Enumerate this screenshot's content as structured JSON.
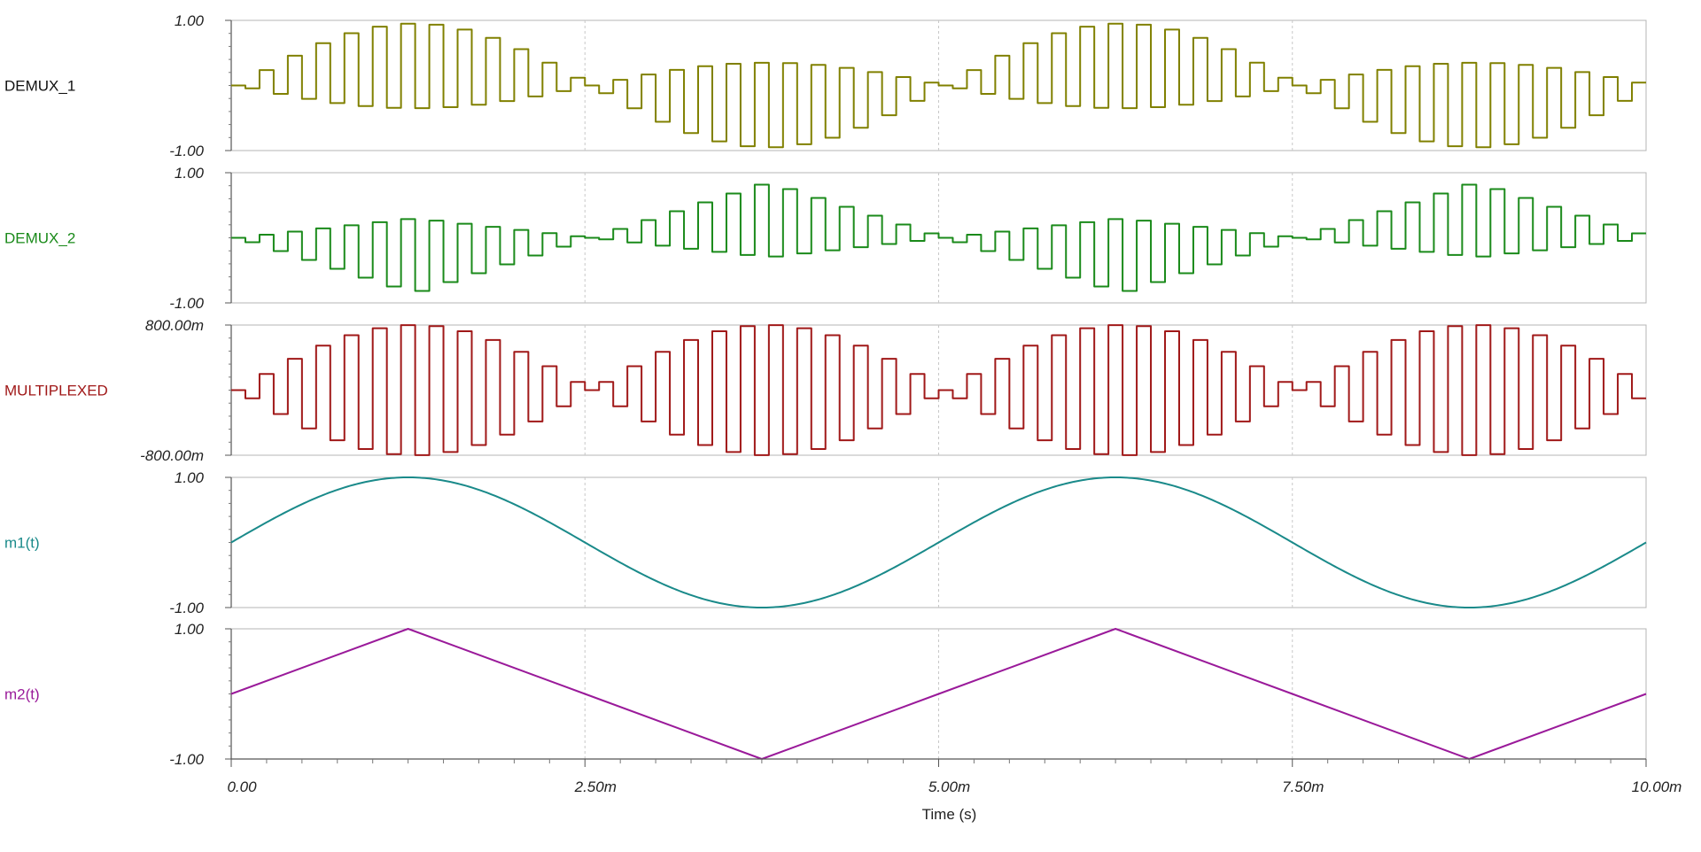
{
  "chart_data": {
    "type": "line",
    "x_unit": "s",
    "xlabel": "Time (s)",
    "xlim": [
      0,
      0.01
    ],
    "x_tick_values": [
      0,
      0.0025,
      0.005,
      0.0075,
      0.01
    ],
    "x_tick_labels": [
      "0.00",
      "2.50m",
      "5.00m",
      "7.50m",
      "10.00m"
    ],
    "grid_vertical": true,
    "panels": [
      {
        "name": "DEMUX_1",
        "color": "#808000",
        "ylim": [
          -1,
          1
        ],
        "y_tick_labels": [
          "1.00",
          "-1.00"
        ],
        "description_of_shape": "sampled m1(t), square pulses alternating above/below zero with sine envelope",
        "envelope_amplitude": 1.0,
        "envelope_period": 0.005,
        "sample_period": 0.0001
      },
      {
        "name": "DEMUX_2",
        "color": "#1a8a1a",
        "ylim": [
          -1,
          1
        ],
        "y_tick_labels": [
          "1.00",
          "-1.00"
        ],
        "envelope_amplitude": 1.0,
        "envelope_period": 0.005,
        "sample_period": 0.0001
      },
      {
        "name": "MULTIPLEXED",
        "color": "#a01818",
        "ylim": [
          -0.8,
          0.8
        ],
        "y_tick_labels": [
          "800.00m",
          "-800.00m"
        ],
        "envelope_amplitude": 0.8,
        "envelope_period": 0.005,
        "sample_period": 0.0001
      },
      {
        "name": "m1(t)",
        "color": "#1a8a8a",
        "ylim": [
          -1,
          1
        ],
        "y_tick_labels": [
          "1.00",
          "-1.00"
        ],
        "waveform": "sine",
        "amplitude": 1.0,
        "period": 0.005,
        "points": [
          [
            0,
            0
          ],
          [
            0.00125,
            1
          ],
          [
            0.0025,
            0
          ],
          [
            0.00375,
            -1
          ],
          [
            0.005,
            0
          ],
          [
            0.00625,
            1
          ],
          [
            0.0075,
            0
          ],
          [
            0.00875,
            -1
          ],
          [
            0.01,
            0
          ]
        ]
      },
      {
        "name": "m2(t)",
        "color": "#9a1a9a",
        "ylim": [
          -1,
          1
        ],
        "y_tick_labels": [
          "1.00",
          "-1.00"
        ],
        "waveform": "triangle",
        "amplitude": 1.0,
        "period": 0.005,
        "points": [
          [
            0,
            0
          ],
          [
            0.00125,
            1
          ],
          [
            0.0025,
            0
          ],
          [
            0.00375,
            -1
          ],
          [
            0.005,
            0
          ],
          [
            0.00625,
            1
          ],
          [
            0.0075,
            0
          ],
          [
            0.00875,
            -1
          ],
          [
            0.01,
            0
          ]
        ]
      }
    ]
  }
}
